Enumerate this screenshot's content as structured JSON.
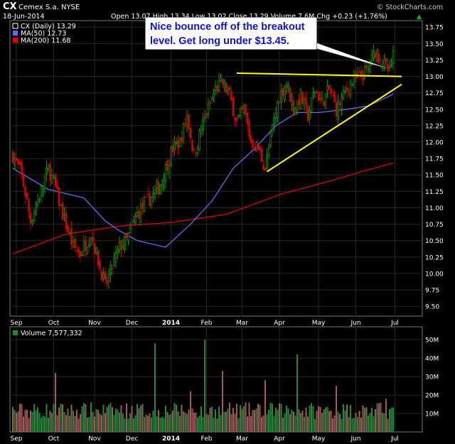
{
  "header": {
    "symbol": "CX",
    "company": "Cemex S.a. NYSE",
    "date": "18-Jun-2014",
    "quote": "Open 13.07  High 13.34  Low 13.02  Close 13.29  Volume 7.6M  Chg +0.23 (+1.76%)",
    "quote_arrow": "▲",
    "credit": "© StockCharts.com"
  },
  "legend": {
    "price": "CX (Daily) 13.29",
    "ma50": "MA(50) 12.73",
    "ma200": "MA(200) 11.68",
    "volume": "Volume 7,577,332"
  },
  "annotation": "Nice bounce off of the breakout level. Get long under $13.45.",
  "colors": {
    "up": "#00c000",
    "down": "#e00000",
    "ma50": "#6a6af0",
    "ma200": "#e00000",
    "trendline": "#ffff00",
    "vol_up": "#1f8a3c",
    "vol_down": "#a05a5a",
    "annotation_text": "#1010d0"
  },
  "chart_data": [
    {
      "type": "candlestick",
      "series": [
        {
          "name": "CX (Daily)",
          "values": "daily OHLC Sep 2013 - 18 Jun 2014"
        },
        {
          "name": "MA(50)",
          "values": [
            [
              0,
              11.6
            ],
            [
              20,
              11.28
            ],
            [
              40,
              11.15
            ],
            [
              52,
              10.8
            ],
            [
              60,
              10.65
            ],
            [
              70,
              10.5
            ],
            [
              86,
              10.4
            ],
            [
              100,
              10.75
            ],
            [
              112,
              11.1
            ],
            [
              124,
              11.6
            ],
            [
              136,
              11.9
            ],
            [
              148,
              12.25
            ],
            [
              160,
              12.45
            ],
            [
              172,
              12.45
            ],
            [
              188,
              12.5
            ],
            [
              200,
              12.55
            ],
            [
              214,
              12.73
            ]
          ]
        },
        {
          "name": "MA(200)",
          "values": [
            [
              0,
              10.3
            ],
            [
              30,
              10.6
            ],
            [
              60,
              10.72
            ],
            [
              90,
              10.78
            ],
            [
              120,
              10.9
            ],
            [
              150,
              11.2
            ],
            [
              180,
              11.42
            ],
            [
              200,
              11.58
            ],
            [
              214,
              11.68
            ]
          ]
        }
      ],
      "x_ticks": [
        "Sep",
        "Oct",
        "Nov",
        "Dec",
        "2014",
        "Feb",
        "Mar",
        "Apr",
        "May",
        "Jun",
        "Jul"
      ],
      "y_ticks": [
        "13.75",
        "13.50",
        "13.25",
        "13.00",
        "12.75",
        "12.50",
        "12.25",
        "12.00",
        "11.75",
        "11.50",
        "11.25",
        "11.00",
        "10.75",
        "10.50",
        "10.25",
        "10.00",
        "9.75",
        "9.50"
      ],
      "ylim": [
        9.35,
        13.85
      ],
      "last_close": 13.29,
      "trendlines": [
        {
          "name": "breakout level",
          "points": [
            [
              126,
              13.05
            ],
            [
              214,
              13.0
            ]
          ]
        },
        {
          "name": "rising support",
          "points": [
            [
              143,
              11.55
            ],
            [
              214,
              12.88
            ]
          ]
        }
      ],
      "grid": true,
      "legend_position": "top-left"
    },
    {
      "type": "bar",
      "title": "Volume",
      "last_value": 7577332,
      "y_ticks": [
        "50M",
        "40M",
        "30M",
        "20M",
        "10M"
      ],
      "ylim": [
        0,
        57000000
      ],
      "values": "daily volume bars (shares), ~5M-55M range",
      "grid": true
    }
  ]
}
